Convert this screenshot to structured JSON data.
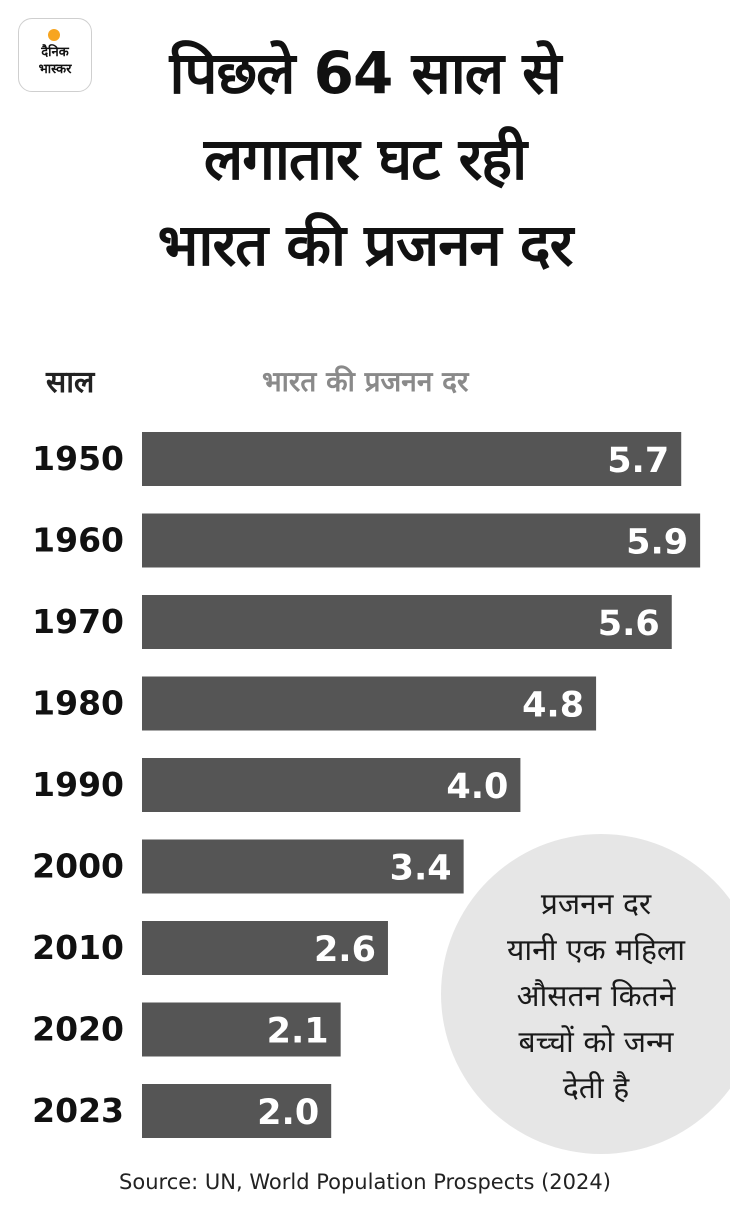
{
  "logo": {
    "text": "दैनिक\nभास्कर",
    "accent_color": "#f7a520"
  },
  "title": "पिछले 64 साल से\nलगातार घट रही\nभारत की प्रजनन दर",
  "chart_data": {
    "type": "bar",
    "orientation": "horizontal",
    "categories": [
      "1950",
      "1960",
      "1970",
      "1980",
      "1990",
      "2000",
      "2010",
      "2020",
      "2023"
    ],
    "values": [
      5.7,
      5.9,
      5.6,
      4.8,
      4.0,
      3.4,
      2.6,
      2.1,
      2.0
    ],
    "value_labels": [
      "5.7",
      "5.9",
      "5.6",
      "4.8",
      "4.0",
      "3.4",
      "2.6",
      "2.1",
      "2.0"
    ],
    "category_header": "साल",
    "value_header": "भारत की प्रजनन दर",
    "bar_color": "#555555",
    "grid": false
  },
  "note": "प्रजनन दर\nयानी एक महिला\nऔसतन कितने\nबच्चों को जन्म\nदेती है",
  "source": "Source: UN, World Population Prospects (2024)"
}
